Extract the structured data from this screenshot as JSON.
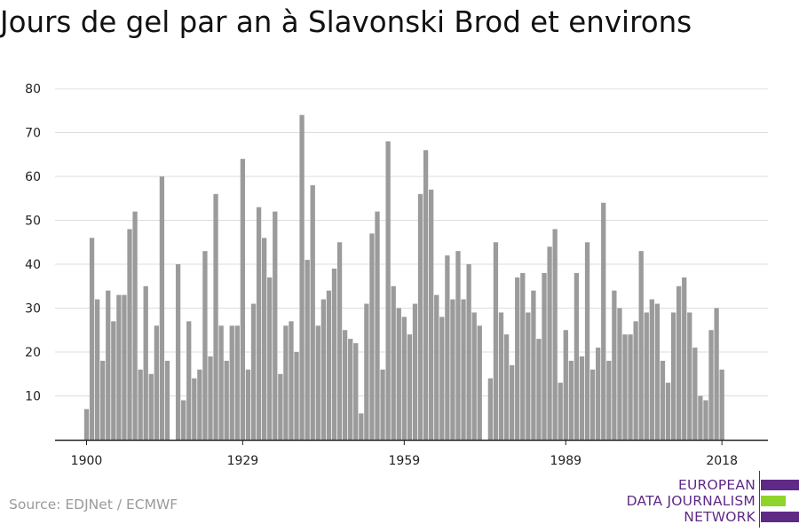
{
  "chart_data": {
    "type": "bar",
    "title": "Jours de gel par an à Slavonski Brod et environs",
    "xlabel": "",
    "ylabel": "",
    "x": [
      1900,
      1901,
      1902,
      1903,
      1904,
      1905,
      1906,
      1907,
      1908,
      1909,
      1910,
      1911,
      1912,
      1913,
      1914,
      1915,
      1916,
      1917,
      1918,
      1919,
      1920,
      1921,
      1922,
      1923,
      1924,
      1925,
      1926,
      1927,
      1928,
      1929,
      1930,
      1931,
      1932,
      1933,
      1934,
      1935,
      1936,
      1937,
      1938,
      1939,
      1940,
      1941,
      1942,
      1943,
      1944,
      1945,
      1946,
      1947,
      1948,
      1949,
      1950,
      1951,
      1952,
      1953,
      1954,
      1955,
      1956,
      1957,
      1958,
      1959,
      1960,
      1961,
      1962,
      1963,
      1964,
      1965,
      1966,
      1967,
      1968,
      1969,
      1970,
      1971,
      1972,
      1973,
      1974,
      1975,
      1976,
      1977,
      1978,
      1979,
      1980,
      1981,
      1982,
      1983,
      1984,
      1985,
      1986,
      1987,
      1988,
      1989,
      1990,
      1991,
      1992,
      1993,
      1994,
      1995,
      1996,
      1997,
      1998,
      1999,
      2000,
      2001,
      2002,
      2003,
      2004,
      2005,
      2006,
      2007,
      2008,
      2009,
      2010,
      2011,
      2012,
      2013,
      2014,
      2015,
      2016,
      2017,
      2018
    ],
    "values": [
      7,
      46,
      32,
      18,
      34,
      27,
      33,
      33,
      48,
      52,
      16,
      35,
      15,
      26,
      60,
      18,
      0,
      40,
      9,
      27,
      14,
      16,
      43,
      19,
      56,
      26,
      18,
      26,
      26,
      64,
      16,
      31,
      53,
      46,
      37,
      52,
      15,
      26,
      27,
      20,
      74,
      41,
      58,
      26,
      32,
      34,
      39,
      45,
      25,
      23,
      22,
      6,
      31,
      47,
      52,
      16,
      68,
      35,
      30,
      28,
      24,
      31,
      56,
      66,
      57,
      33,
      28,
      42,
      32,
      43,
      32,
      40,
      29,
      26,
      0,
      14,
      45,
      29,
      24,
      17,
      37,
      38,
      29,
      34,
      23,
      38,
      44,
      48,
      13,
      25,
      18,
      38,
      19,
      45,
      16,
      21,
      54,
      18,
      34,
      30,
      24,
      24,
      27,
      43,
      29,
      32,
      31,
      18,
      13,
      29,
      35,
      37,
      29,
      21,
      10,
      9,
      25,
      30,
      16
    ],
    "x_ticks": [
      "1900",
      "1929",
      "1959",
      "1989",
      "2018"
    ],
    "y_ticks": [
      "10",
      "20",
      "30",
      "40",
      "50",
      "60",
      "70",
      "80"
    ],
    "xlim": [
      1900,
      2018
    ],
    "ylim": [
      0,
      80
    ],
    "grid": true,
    "legend": "none",
    "colors": {
      "bar": "#9b9b9b",
      "grid": "#dddddd",
      "axis": "#222222"
    }
  },
  "footer": {
    "source": "Source: EDJNet / ECMWF"
  },
  "logo": {
    "line1": "EUROPEAN",
    "line2": "DATA JOURNALISM",
    "line3": "NETWORK",
    "colors": {
      "purple": "#5f2a86",
      "green": "#8fd42a"
    }
  }
}
